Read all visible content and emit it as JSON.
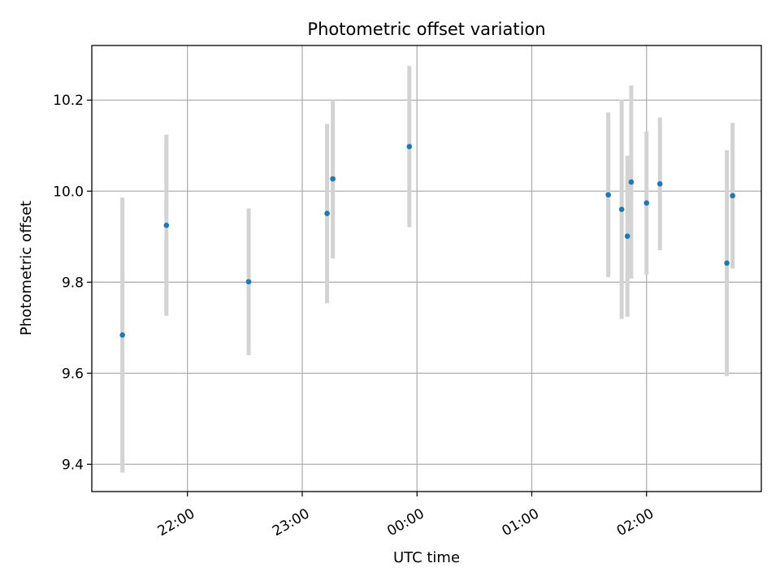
{
  "chart_data": {
    "type": "scatter",
    "title": "Photometric offset variation",
    "xlabel": "UTC time",
    "ylabel": "Photometric offset",
    "grid": true,
    "x_ticks": [
      "22:00",
      "23:00",
      "00:00",
      "01:00",
      "02:00"
    ],
    "x_tick_times": [
      "22:00",
      "23:00",
      "24:00",
      "25:00",
      "26:00"
    ],
    "xlim": [
      "21:10",
      "27:00"
    ],
    "y_ticks": [
      "9.4",
      "9.6",
      "9.8",
      "10.0",
      "10.2"
    ],
    "ylim": [
      9.34,
      10.32
    ],
    "colors": {
      "point": "#1f77b4",
      "errorbar": "#d3d3d3",
      "grid": "#b0b0b0"
    },
    "points": [
      {
        "t": "21:26",
        "y": 9.684,
        "err": 0.302
      },
      {
        "t": "21:49",
        "y": 9.925,
        "err": 0.199
      },
      {
        "t": "22:32",
        "y": 9.801,
        "err": 0.161
      },
      {
        "t": "23:13",
        "y": 9.951,
        "err": 0.197
      },
      {
        "t": "23:16",
        "y": 10.027,
        "err": 0.175
      },
      {
        "t": "23:56",
        "y": 10.098,
        "err": 0.177
      },
      {
        "t": "25:40",
        "y": 9.992,
        "err": 0.181
      },
      {
        "t": "25:47",
        "y": 9.96,
        "err": 0.241
      },
      {
        "t": "25:50",
        "y": 9.901,
        "err": 0.177
      },
      {
        "t": "25:52",
        "y": 10.02,
        "err": 0.212
      },
      {
        "t": "26:00",
        "y": 9.974,
        "err": 0.157
      },
      {
        "t": "26:07",
        "y": 10.016,
        "err": 0.146
      },
      {
        "t": "26:42",
        "y": 9.842,
        "err": 0.248
      },
      {
        "t": "26:45",
        "y": 9.99,
        "err": 0.16
      }
    ]
  }
}
